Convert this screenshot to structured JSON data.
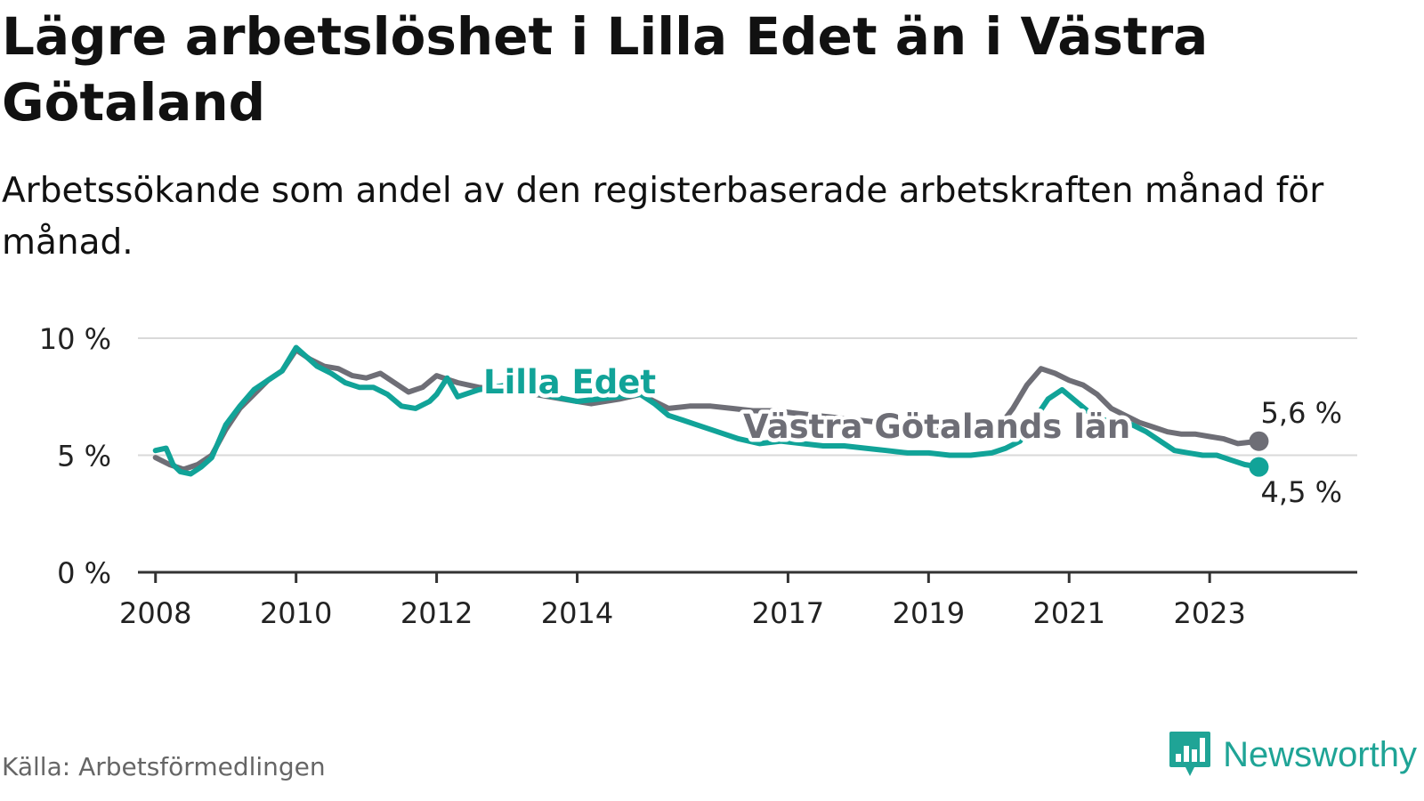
{
  "title": "Lägre arbetslöshet i Lilla Edet än i Västra Götaland",
  "subtitle": "Arbetssökande som andel av den registerbaserade arbetskraften månad för månad.",
  "source": "Källa: Arbetsförmedlingen",
  "brand": "Newsworthy",
  "colors": {
    "lilla": "#11a398",
    "vg": "#6e6e76",
    "grid": "#d9d9d9",
    "axis": "#333333",
    "brand": "#1fa496"
  },
  "chart_data": {
    "type": "line",
    "title": "Lägre arbetslöshet i Lilla Edet än i Västra Götaland",
    "xlabel": "",
    "ylabel": "",
    "ylim": [
      0,
      10
    ],
    "xlim": [
      2007.75,
      2025.1
    ],
    "y_ticks": [
      0,
      5,
      10
    ],
    "y_tick_labels": [
      "0 %",
      "5 %",
      "10 %"
    ],
    "x_ticks": [
      2008,
      2010,
      2012,
      2014,
      2017,
      2019,
      2021,
      2023
    ],
    "x_tick_labels": [
      "2008",
      "2010",
      "2012",
      "2014",
      "2017",
      "2019",
      "2021",
      "2023"
    ],
    "series": [
      {
        "name": "Lilla Edet",
        "label": "Lilla Edet",
        "end_label": "4,5 %",
        "x": [
          2008.0,
          2008.15,
          2008.25,
          2008.35,
          2008.5,
          2008.65,
          2008.8,
          2009.0,
          2009.2,
          2009.4,
          2009.6,
          2009.8,
          2010.0,
          2010.15,
          2010.3,
          2010.5,
          2010.7,
          2010.9,
          2011.1,
          2011.3,
          2011.5,
          2011.7,
          2011.9,
          2012.0,
          2012.15,
          2012.3,
          2012.6,
          2013.0,
          2013.5,
          2014.0,
          2014.3,
          2014.6,
          2014.9,
          2015.1,
          2015.3,
          2015.5,
          2015.7,
          2016.0,
          2016.3,
          2016.6,
          2016.9,
          2017.2,
          2017.5,
          2017.8,
          2018.1,
          2018.4,
          2018.7,
          2019.0,
          2019.3,
          2019.6,
          2019.9,
          2020.1,
          2020.3,
          2020.5,
          2020.7,
          2020.9,
          2021.1,
          2021.3,
          2021.5,
          2021.7,
          2021.9,
          2022.1,
          2022.3,
          2022.5,
          2022.7,
          2022.9,
          2023.1,
          2023.3,
          2023.5,
          2023.7
        ],
        "values": [
          5.2,
          5.3,
          4.6,
          4.3,
          4.2,
          4.5,
          4.9,
          6.3,
          7.1,
          7.8,
          8.2,
          8.6,
          9.6,
          9.2,
          8.8,
          8.5,
          8.1,
          7.9,
          7.9,
          7.6,
          7.1,
          7.0,
          7.3,
          7.6,
          8.3,
          7.5,
          7.8,
          8.0,
          7.6,
          7.3,
          7.4,
          7.5,
          7.6,
          7.2,
          6.7,
          6.5,
          6.3,
          6.0,
          5.7,
          5.5,
          5.6,
          5.5,
          5.4,
          5.4,
          5.3,
          5.2,
          5.1,
          5.1,
          5.0,
          5.0,
          5.1,
          5.3,
          5.6,
          6.5,
          7.4,
          7.8,
          7.3,
          6.8,
          6.5,
          6.4,
          6.3,
          6.0,
          5.6,
          5.2,
          5.1,
          5.0,
          5.0,
          4.8,
          4.6,
          4.5
        ]
      },
      {
        "name": "Västra Götalands län",
        "label": "Västra Götalands län",
        "end_label": "5,6 %",
        "x": [
          2008.0,
          2008.2,
          2008.4,
          2008.6,
          2008.8,
          2009.0,
          2009.2,
          2009.4,
          2009.6,
          2009.8,
          2010.0,
          2010.2,
          2010.4,
          2010.6,
          2010.8,
          2011.0,
          2011.2,
          2011.4,
          2011.6,
          2011.8,
          2012.0,
          2012.3,
          2012.6,
          2013.0,
          2013.4,
          2013.8,
          2014.2,
          2014.6,
          2014.9,
          2015.1,
          2015.3,
          2015.6,
          2015.9,
          2016.2,
          2016.5,
          2016.8,
          2017.1,
          2017.4,
          2017.7,
          2018.0,
          2018.3,
          2018.6,
          2018.9,
          2019.2,
          2019.5,
          2019.8,
          2020.0,
          2020.2,
          2020.4,
          2020.6,
          2020.8,
          2021.0,
          2021.2,
          2021.4,
          2021.6,
          2021.8,
          2022.0,
          2022.2,
          2022.4,
          2022.6,
          2022.8,
          2023.0,
          2023.2,
          2023.4,
          2023.7
        ],
        "values": [
          4.9,
          4.6,
          4.4,
          4.6,
          5.0,
          6.1,
          7.0,
          7.6,
          8.2,
          8.6,
          9.5,
          9.1,
          8.8,
          8.7,
          8.4,
          8.3,
          8.5,
          8.1,
          7.7,
          7.9,
          8.4,
          8.1,
          7.9,
          7.8,
          7.6,
          7.4,
          7.2,
          7.4,
          7.6,
          7.3,
          7.0,
          7.1,
          7.1,
          7.0,
          6.9,
          6.9,
          6.8,
          6.7,
          6.6,
          6.5,
          6.4,
          6.3,
          6.2,
          6.2,
          6.1,
          6.1,
          6.2,
          7.0,
          8.0,
          8.7,
          8.5,
          8.2,
          8.0,
          7.6,
          7.0,
          6.7,
          6.4,
          6.2,
          6.0,
          5.9,
          5.9,
          5.8,
          5.7,
          5.5,
          5.6
        ]
      }
    ]
  }
}
